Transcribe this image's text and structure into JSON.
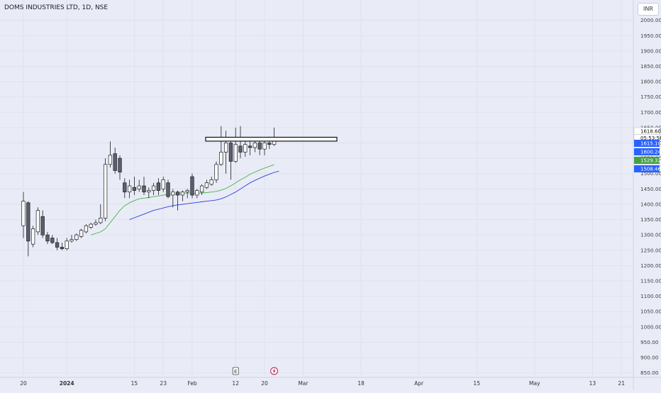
{
  "header": {
    "symbol_title": "DOMS INDUSTRIES LTD, 1D, NSE",
    "currency": "INR"
  },
  "markers": {
    "earnings_label": "E",
    "dividend_icon": "lightning-icon"
  },
  "colors": {
    "background": "#e9ecf6",
    "grid": "#dfe2ec",
    "candle_up_fill": "#ffffff",
    "candle_down_fill": "#5d606b",
    "candle_outline": "#1b1d24",
    "ema_green": "#4caf50",
    "ema_blue": "#2f3fd9",
    "label_blue": "#2962ff",
    "label_green": "#43a047",
    "last_price_bg": "#ffffff"
  },
  "chart_data": {
    "type": "candlestick",
    "title": "DOMS INDUSTRIES LTD, 1D, NSE",
    "y_axis": {
      "range": [
        840,
        2020
      ],
      "tick_labels": [
        "850.00",
        "900.00",
        "950.00",
        "1000.00",
        "1050.00",
        "1100.00",
        "1150.00",
        "1200.00",
        "1250.00",
        "1300.00",
        "1350.00",
        "1400.00",
        "1450.00",
        "1500.00",
        "1550.00",
        "1600.00",
        "1650.00",
        "1700.00",
        "1750.00",
        "1800.00",
        "1850.00",
        "1900.00",
        "1950.00",
        "2000.00"
      ],
      "tick_values": [
        850,
        900,
        950,
        1000,
        1050,
        1100,
        1150,
        1200,
        1250,
        1300,
        1350,
        1400,
        1450,
        1500,
        1550,
        1600,
        1650,
        1700,
        1750,
        1800,
        1850,
        1900,
        1950,
        2000
      ]
    },
    "x_axis": {
      "tick_labels": [
        "20",
        "2024",
        "15",
        "23",
        "Feb",
        "12",
        "20",
        "Mar",
        "18",
        "Apr",
        "15",
        "May",
        "13",
        "21"
      ],
      "tick_bar_index": [
        0,
        9,
        23,
        29,
        35,
        44,
        50,
        58,
        70,
        82,
        94,
        106,
        118,
        124
      ],
      "bar_count_visible": 126
    },
    "candles": [
      {
        "o": 1330,
        "h": 1440,
        "l": 1290,
        "c": 1410
      },
      {
        "o": 1405,
        "h": 1410,
        "l": 1230,
        "c": 1280
      },
      {
        "o": 1270,
        "h": 1330,
        "l": 1260,
        "c": 1320
      },
      {
        "o": 1310,
        "h": 1390,
        "l": 1300,
        "c": 1380
      },
      {
        "o": 1360,
        "h": 1380,
        "l": 1290,
        "c": 1300
      },
      {
        "o": 1300,
        "h": 1310,
        "l": 1270,
        "c": 1280
      },
      {
        "o": 1290,
        "h": 1300,
        "l": 1270,
        "c": 1275
      },
      {
        "o": 1275,
        "h": 1290,
        "l": 1250,
        "c": 1260
      },
      {
        "o": 1260,
        "h": 1275,
        "l": 1250,
        "c": 1255
      },
      {
        "o": 1255,
        "h": 1290,
        "l": 1250,
        "c": 1280
      },
      {
        "o": 1280,
        "h": 1300,
        "l": 1275,
        "c": 1285
      },
      {
        "o": 1285,
        "h": 1305,
        "l": 1280,
        "c": 1300
      },
      {
        "o": 1295,
        "h": 1320,
        "l": 1290,
        "c": 1315
      },
      {
        "o": 1310,
        "h": 1335,
        "l": 1305,
        "c": 1330
      },
      {
        "o": 1325,
        "h": 1340,
        "l": 1320,
        "c": 1335
      },
      {
        "o": 1335,
        "h": 1350,
        "l": 1330,
        "c": 1340
      },
      {
        "o": 1340,
        "h": 1400,
        "l": 1335,
        "c": 1355
      },
      {
        "o": 1355,
        "h": 1550,
        "l": 1345,
        "c": 1530
      },
      {
        "o": 1530,
        "h": 1605,
        "l": 1520,
        "c": 1560
      },
      {
        "o": 1565,
        "h": 1585,
        "l": 1500,
        "c": 1510
      },
      {
        "o": 1550,
        "h": 1560,
        "l": 1480,
        "c": 1505
      },
      {
        "o": 1470,
        "h": 1485,
        "l": 1420,
        "c": 1440
      },
      {
        "o": 1440,
        "h": 1480,
        "l": 1420,
        "c": 1460
      },
      {
        "o": 1455,
        "h": 1490,
        "l": 1430,
        "c": 1445
      },
      {
        "o": 1450,
        "h": 1480,
        "l": 1440,
        "c": 1460
      },
      {
        "o": 1460,
        "h": 1490,
        "l": 1430,
        "c": 1440
      },
      {
        "o": 1440,
        "h": 1455,
        "l": 1420,
        "c": 1445
      },
      {
        "o": 1445,
        "h": 1470,
        "l": 1430,
        "c": 1460
      },
      {
        "o": 1470,
        "h": 1485,
        "l": 1430,
        "c": 1445
      },
      {
        "o": 1450,
        "h": 1490,
        "l": 1440,
        "c": 1480
      },
      {
        "o": 1470,
        "h": 1480,
        "l": 1420,
        "c": 1425
      },
      {
        "o": 1430,
        "h": 1450,
        "l": 1390,
        "c": 1440
      },
      {
        "o": 1440,
        "h": 1445,
        "l": 1380,
        "c": 1430
      },
      {
        "o": 1430,
        "h": 1445,
        "l": 1410,
        "c": 1440
      },
      {
        "o": 1440,
        "h": 1450,
        "l": 1420,
        "c": 1445
      },
      {
        "o": 1490,
        "h": 1500,
        "l": 1420,
        "c": 1430
      },
      {
        "o": 1430,
        "h": 1450,
        "l": 1420,
        "c": 1445
      },
      {
        "o": 1440,
        "h": 1465,
        "l": 1430,
        "c": 1460
      },
      {
        "o": 1455,
        "h": 1480,
        "l": 1450,
        "c": 1470
      },
      {
        "o": 1465,
        "h": 1490,
        "l": 1460,
        "c": 1480
      },
      {
        "o": 1480,
        "h": 1540,
        "l": 1470,
        "c": 1530
      },
      {
        "o": 1530,
        "h": 1655,
        "l": 1525,
        "c": 1570
      },
      {
        "o": 1570,
        "h": 1640,
        "l": 1500,
        "c": 1600
      },
      {
        "o": 1600,
        "h": 1610,
        "l": 1480,
        "c": 1540
      },
      {
        "o": 1540,
        "h": 1650,
        "l": 1535,
        "c": 1595
      },
      {
        "o": 1590,
        "h": 1655,
        "l": 1550,
        "c": 1570
      },
      {
        "o": 1570,
        "h": 1620,
        "l": 1555,
        "c": 1595
      },
      {
        "o": 1590,
        "h": 1605,
        "l": 1560,
        "c": 1585
      },
      {
        "o": 1585,
        "h": 1610,
        "l": 1570,
        "c": 1600
      },
      {
        "o": 1600,
        "h": 1610,
        "l": 1560,
        "c": 1580
      },
      {
        "o": 1580,
        "h": 1610,
        "l": 1560,
        "c": 1600
      },
      {
        "o": 1600,
        "h": 1620,
        "l": 1580,
        "c": 1595
      },
      {
        "o": 1595,
        "h": 1650,
        "l": 1590,
        "c": 1615
      }
    ],
    "series": [
      {
        "type": "line",
        "color": "#4caf50",
        "start_bar_index": 14,
        "values": [
          1300,
          1305,
          1310,
          1320,
          1340,
          1360,
          1380,
          1395,
          1405,
          1412,
          1418,
          1420,
          1422,
          1425,
          1427,
          1430,
          1432,
          1433,
          1434,
          1436,
          1437,
          1436,
          1436,
          1437,
          1438,
          1440,
          1442,
          1446,
          1452,
          1460,
          1470,
          1480,
          1488,
          1498,
          1505,
          1512,
          1518,
          1524,
          1529
        ]
      },
      {
        "type": "line",
        "color": "#2f3fd9",
        "start_bar_index": 22,
        "values": [
          1350,
          1356,
          1362,
          1368,
          1374,
          1380,
          1384,
          1388,
          1392,
          1395,
          1398,
          1400,
          1402,
          1404,
          1406,
          1408,
          1410,
          1412,
          1414,
          1418,
          1424,
          1432,
          1440,
          1450,
          1460,
          1470,
          1478,
          1485,
          1492,
          1498,
          1504,
          1508
        ]
      }
    ],
    "horizontal_ray": {
      "type": "rectangle",
      "top": 1618.6,
      "bottom": 1606,
      "start_bar_index": 40,
      "end_bar_index": 65
    },
    "earnings_bar_index": 44,
    "dividend_bar_index": 52,
    "price_labels": [
      {
        "text": "1618.60",
        "value": 1618.6,
        "style": "last-price"
      },
      {
        "text": "05:53:58",
        "value": 1618.6,
        "style": "countdown"
      },
      {
        "text": "1615.10",
        "value": 1615.1,
        "style": "blue"
      },
      {
        "text": "1600.24",
        "value": 1600.24,
        "style": "blue"
      },
      {
        "text": "1529.32",
        "value": 1529.32,
        "style": "green"
      },
      {
        "text": "1508.46",
        "value": 1508.46,
        "style": "blue"
      }
    ]
  }
}
